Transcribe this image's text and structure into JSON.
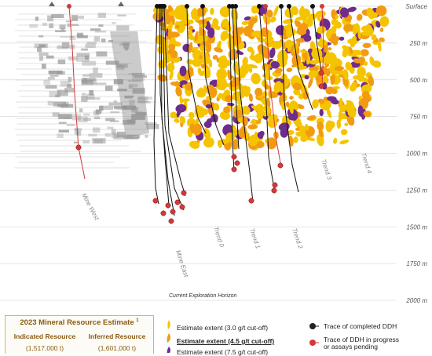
{
  "surface_label": "Surface",
  "depth_labels": [
    "250 m",
    "500 m",
    "750 m",
    "1000 m",
    "1250 m",
    "1500 m",
    "1750 m",
    "2000 m"
  ],
  "depth_ticks": [
    {
      "label": "250 m",
      "depth": 250
    },
    {
      "label": "500 m",
      "depth": 500
    },
    {
      "label": "750 m",
      "depth": 750
    },
    {
      "label": "1000 m",
      "depth": 1000
    },
    {
      "label": "1250 m",
      "depth": 1250
    },
    {
      "label": "1500 m",
      "depth": 1500
    },
    {
      "label": "1750 m",
      "depth": 1750
    },
    {
      "label": "2000 m",
      "depth": 2000
    }
  ],
  "trends": {
    "mine_west": "Mine West",
    "mine_east": "Mine East",
    "trend0": "Trend 0",
    "trend1": "Trend 1",
    "trend2": "Trend 2",
    "trend3": "Trend 3",
    "trend4": "Trend 4"
  },
  "horizon_label": "Current Exploration Horizon",
  "mre": {
    "title": "2023 Mineral Resource Estimate",
    "title_sup": "1",
    "indicated_label": "Indicated Resource",
    "inferred_label": "Inferred Resource",
    "indicated_value": "(1,517,000 t)",
    "inferred_value": "(1,601,000 t)"
  },
  "legend": {
    "est_3": "Estimate extent (3.0  g/t cut-off)",
    "est_45": "Estimate extent (4.5  g/t cut-off)",
    "est_75": "Estimate extent (7.5 g/t cut-off)",
    "completed": "Trace of completed DDH",
    "pending_1": "Trace of DDH in progress",
    "pending_2": "or assays pending"
  },
  "colors": {
    "gold": "#f5c400",
    "orange": "#f29b12",
    "purple": "#6f2c8c",
    "pending": "#d13a3a",
    "drill": "#111111",
    "mine": "#9a9a9a"
  }
}
